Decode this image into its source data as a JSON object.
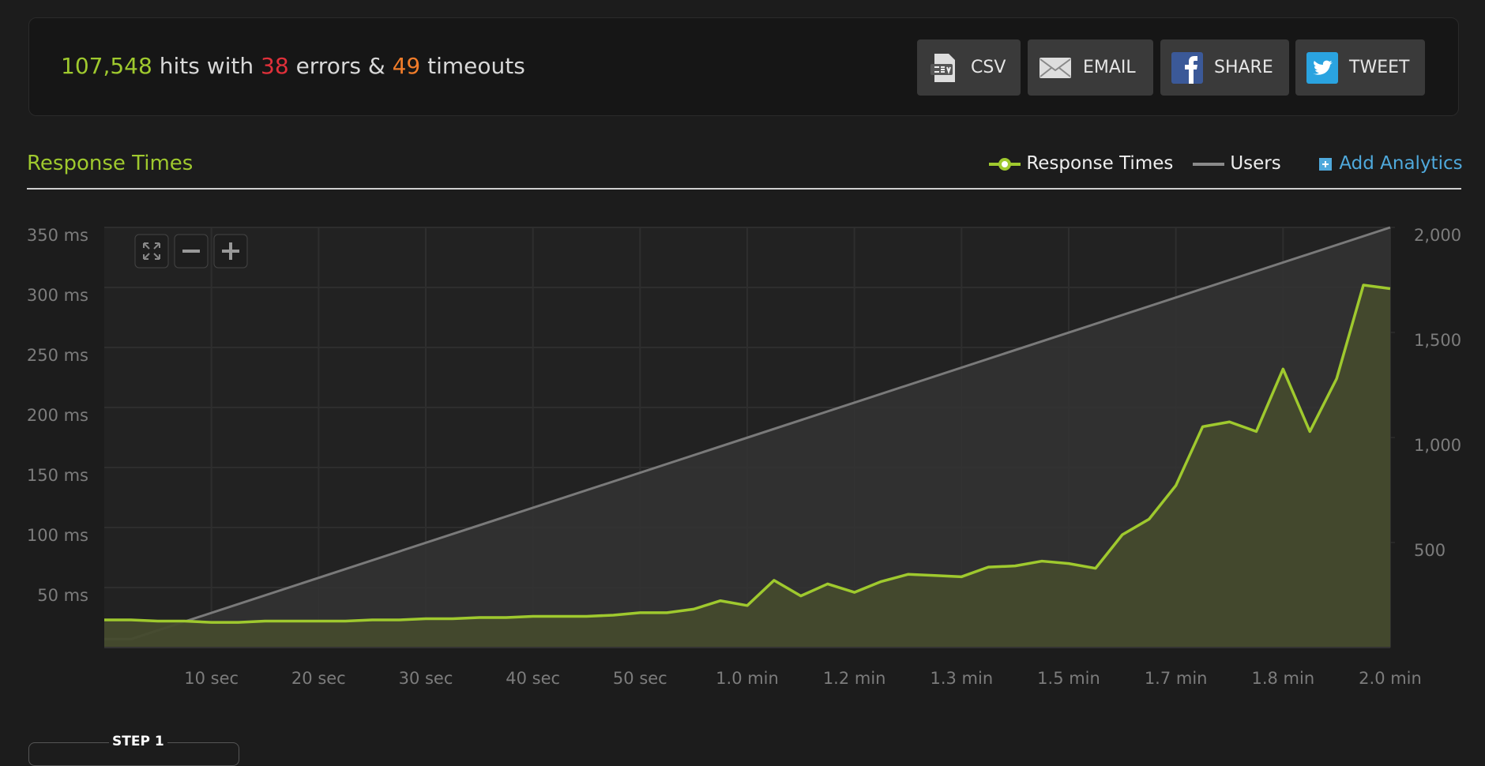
{
  "summary": {
    "hits": "107,548",
    "hits_text": "hits with",
    "errors": "38",
    "errors_text": "errors &",
    "timeouts": "49",
    "timeouts_text": "timeouts"
  },
  "buttons": [
    "CSV",
    "EMAIL",
    "SHARE",
    "TWEET"
  ],
  "add_analytics": "Add Analytics",
  "step": "STEP 1",
  "chart_data": {
    "type": "line",
    "title": "Response Times",
    "x": [
      0,
      2.5,
      5,
      7.5,
      10,
      12.5,
      15,
      17.5,
      20,
      22.5,
      25,
      27.5,
      30,
      32.5,
      35,
      37.5,
      40,
      42.5,
      45,
      47.5,
      50,
      52.5,
      55,
      57.5,
      60,
      62.5,
      65,
      67.5,
      70,
      72.5,
      75,
      77.5,
      80,
      82.5,
      85,
      87.5,
      90,
      92.5,
      95,
      97.5,
      100,
      102.5,
      105,
      107.5,
      110,
      112.5,
      115,
      117.5,
      120
    ],
    "series": [
      {
        "name": "Response Times",
        "color": "#9fc92e",
        "values": [
          23,
          23,
          22,
          22,
          21,
          21,
          22,
          22,
          22,
          22,
          23,
          23,
          24,
          24,
          25,
          25,
          26,
          26,
          26,
          27,
          29,
          29,
          32,
          39,
          35,
          56,
          43,
          53,
          46,
          55,
          61,
          60,
          59,
          67,
          68,
          72,
          70,
          66,
          94,
          107,
          135,
          184,
          188,
          180,
          232,
          180,
          224,
          302,
          299
        ]
      },
      {
        "name": "Users",
        "color": "#7a7a7a",
        "axis": "y2",
        "x": [
          0,
          2.5,
          120
        ],
        "values": [
          40,
          40,
          2000
        ]
      }
    ],
    "xlim": [
      0,
      120
    ],
    "xticks": [
      {
        "value": 10,
        "label": "10 sec"
      },
      {
        "value": 20,
        "label": "20 sec"
      },
      {
        "value": 30,
        "label": "30 sec"
      },
      {
        "value": 40,
        "label": "40 sec"
      },
      {
        "value": 50,
        "label": "50 sec"
      },
      {
        "value": 60,
        "label": "1.0 min"
      },
      {
        "value": 70,
        "label": "1.2 min"
      },
      {
        "value": 80,
        "label": "1.3 min"
      },
      {
        "value": 90,
        "label": "1.5 min"
      },
      {
        "value": 100,
        "label": "1.7 min"
      },
      {
        "value": 110,
        "label": "1.8 min"
      },
      {
        "value": 120,
        "label": "2.0 min"
      }
    ],
    "ylim": [
      0,
      350
    ],
    "yticks": [
      {
        "value": 50,
        "label": "50 ms"
      },
      {
        "value": 100,
        "label": "100 ms"
      },
      {
        "value": 150,
        "label": "150 ms"
      },
      {
        "value": 200,
        "label": "200 ms"
      },
      {
        "value": 250,
        "label": "250 ms"
      },
      {
        "value": 300,
        "label": "300 ms"
      },
      {
        "value": 350,
        "label": "350 ms"
      }
    ],
    "y2lim": [
      0,
      2000
    ],
    "y2ticks": [
      500,
      {
        "value": 1000,
        "label": "1,000"
      },
      {
        "value": 1500,
        "label": "1,500"
      },
      {
        "value": 2000,
        "label": "2,000"
      }
    ],
    "grid": true
  }
}
